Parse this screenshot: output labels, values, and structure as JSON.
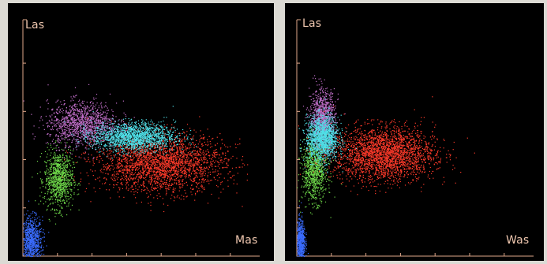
{
  "chart_data": [
    {
      "type": "scatter",
      "ylabel": "Las",
      "xlabel": "Mas",
      "xlim": [
        0,
        300
      ],
      "ylim": [
        0,
        300
      ],
      "x_ticks": 7,
      "y_ticks": 5,
      "axis_color": "#e0a88a",
      "series": [
        {
          "color": "#3a6cff",
          "points": 900,
          "cx": 10,
          "cy": 18,
          "sx": 7,
          "sy": 16
        },
        {
          "color": "#6fd94a",
          "points": 900,
          "cx": 45,
          "cy": 98,
          "sx": 9,
          "sy": 18
        },
        {
          "color": "#c06ec8",
          "points": 1300,
          "cx": 75,
          "cy": 168,
          "sx": 22,
          "sy": 14
        },
        {
          "color": "#ff3a2a",
          "points": 2600,
          "cx": 175,
          "cy": 118,
          "sx": 40,
          "sy": 18
        },
        {
          "color": "#4fe0e8",
          "points": 1700,
          "cx": 140,
          "cy": 152,
          "sx": 26,
          "sy": 9
        }
      ]
    },
    {
      "type": "scatter",
      "ylabel": "Las",
      "xlabel": "Was",
      "xlim": [
        0,
        300
      ],
      "ylim": [
        0,
        300
      ],
      "x_ticks": 7,
      "y_ticks": 5,
      "axis_color": "#e0a88a",
      "series": [
        {
          "color": "#3a6cff",
          "points": 700,
          "cx": 4,
          "cy": 18,
          "sx": 3,
          "sy": 14
        },
        {
          "color": "#6fd94a",
          "points": 900,
          "cx": 22,
          "cy": 110,
          "sx": 8,
          "sy": 20
        },
        {
          "color": "#c06ec8",
          "points": 1000,
          "cx": 32,
          "cy": 175,
          "sx": 8,
          "sy": 18
        },
        {
          "color": "#ff3a2a",
          "points": 2600,
          "cx": 110,
          "cy": 130,
          "sx": 32,
          "sy": 17
        },
        {
          "color": "#4fe0e8",
          "points": 1400,
          "cx": 32,
          "cy": 150,
          "sx": 10,
          "sy": 14
        }
      ]
    }
  ]
}
